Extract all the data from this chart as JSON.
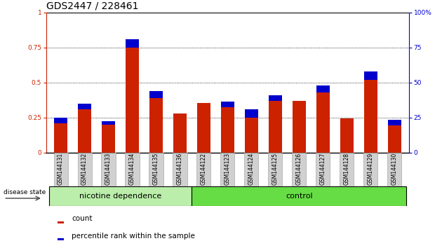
{
  "title": "GDS2447 / 228461",
  "categories": [
    "GSM144131",
    "GSM144132",
    "GSM144133",
    "GSM144134",
    "GSM144135",
    "GSM144136",
    "GSM144122",
    "GSM144123",
    "GSM144124",
    "GSM144125",
    "GSM144126",
    "GSM144127",
    "GSM144128",
    "GSM144129",
    "GSM144130"
  ],
  "red_values": [
    0.21,
    0.31,
    0.2,
    0.75,
    0.39,
    0.28,
    0.355,
    0.325,
    0.25,
    0.37,
    0.37,
    0.43,
    0.245,
    0.52,
    0.195
  ],
  "blue_values": [
    0.04,
    0.04,
    0.025,
    0.06,
    0.05,
    0.0,
    0.0,
    0.04,
    0.06,
    0.04,
    0.0,
    0.05,
    0.0,
    0.06,
    0.04
  ],
  "nicotine_label": "nicotine dependence",
  "control_label": "control",
  "disease_state_label": "disease state",
  "legend_count": "count",
  "legend_percentile": "percentile rank within the sample",
  "ylim_left": [
    0,
    1
  ],
  "ylim_right": [
    0,
    100
  ],
  "yticks_left": [
    0,
    0.25,
    0.5,
    0.75,
    1.0
  ],
  "yticks_right": [
    0,
    25,
    50,
    75,
    100
  ],
  "ytick_labels_left": [
    "0",
    "0.25",
    "0.5",
    "0.75",
    "1"
  ],
  "ytick_labels_right": [
    "0",
    "25",
    "50",
    "75",
    "100%"
  ],
  "red_color": "#cc2200",
  "blue_color": "#0000cc",
  "nicotine_bg": "#bbeeaa",
  "control_bg": "#66dd44",
  "bar_width": 0.55,
  "title_fontsize": 10,
  "tick_fontsize": 6.5,
  "label_fontsize": 8
}
